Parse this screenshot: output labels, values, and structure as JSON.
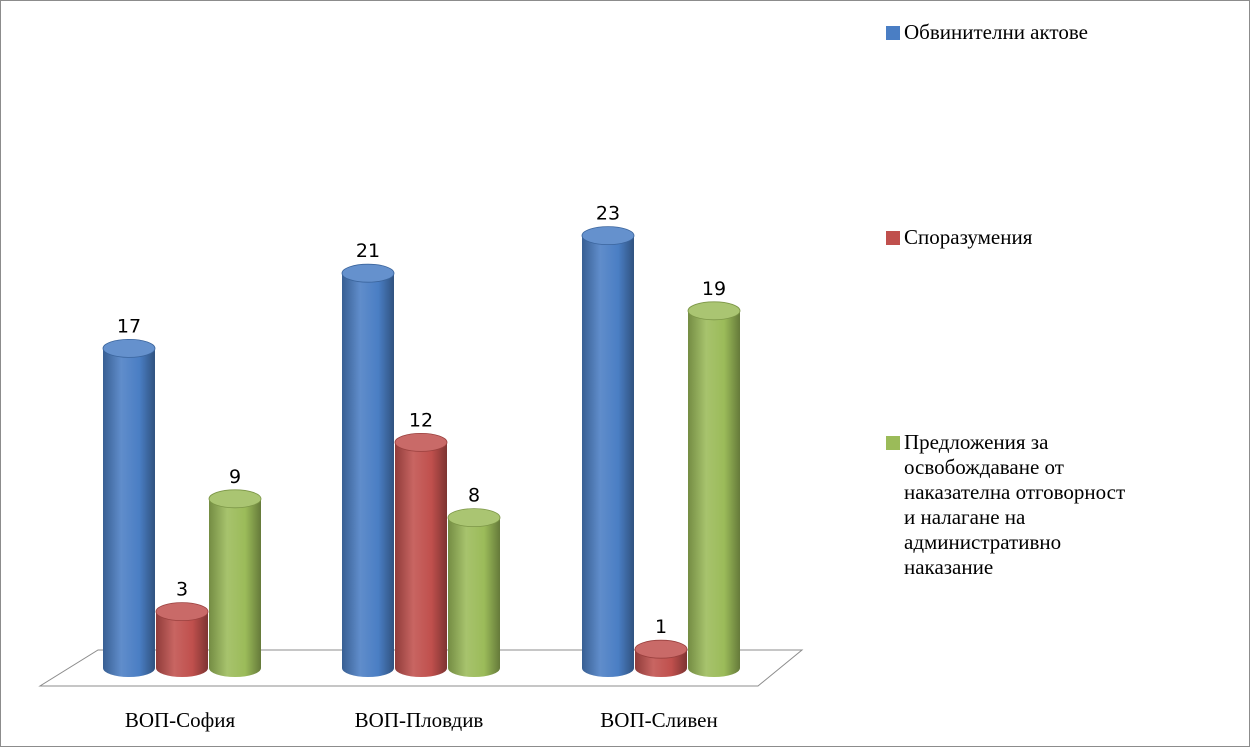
{
  "chart_data": {
    "type": "bar",
    "style": "3d-cylinder",
    "categories": [
      "ВОП-София",
      "ВОП-Пловдив",
      "ВОП-Сливен"
    ],
    "series": [
      {
        "name": "Обвинителни актове",
        "color": "#4a7ec4",
        "values": [
          17,
          21,
          23
        ]
      },
      {
        "name": "Споразумения",
        "color": "#c0504d",
        "values": [
          3,
          12,
          1
        ]
      },
      {
        "name": "Предложения за освобождаване от наказателна отговорност и налагане на административно наказание",
        "color": "#9bbb59",
        "values": [
          9,
          8,
          19
        ]
      }
    ],
    "data_labels": true,
    "legend_position": "right",
    "grid": false
  }
}
